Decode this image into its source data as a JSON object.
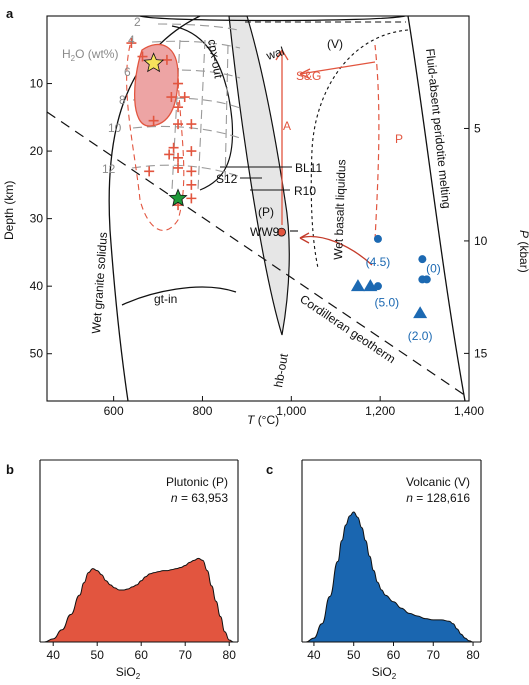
{
  "chart_data": [
    {
      "panel": "a",
      "type": "scatter",
      "xlabel_main": "T",
      "xlabel_unit": "(°C)",
      "ylabel": "Depth (km)",
      "y2label_main": "P",
      "y2label_unit": "(kbar)",
      "xlim": [
        450,
        1400
      ],
      "ylim": [
        0,
        57
      ],
      "x_ticks": [
        "600",
        "800",
        "1,000",
        "1,200",
        "1,400"
      ],
      "y_ticks": [
        "10",
        "20",
        "30",
        "40",
        "50"
      ],
      "y2_ticks": [
        "5",
        "10",
        "15"
      ],
      "water_contours": {
        "title": "H2O (wt%)",
        "title_base": "H",
        "title_sub": "2",
        "title_rest": "O (wt%)",
        "labels": [
          "2",
          "4",
          "6",
          "8",
          "10",
          "12"
        ]
      },
      "labels": {
        "cpx_out": "cpx-out",
        "wal": "wal",
        "V": "(V)",
        "SG": "S&G",
        "A": "A",
        "P_path": "P",
        "BL11": "BL11",
        "S12": "S12",
        "R10": "R10",
        "P_field": "(P)",
        "WW9": "WW9",
        "gt_in": "gt-in",
        "hb_out": "hb-out",
        "wet_granite": "Wet granite solidus",
        "wet_basalt": "Wet basalt liquidus",
        "fluid_absent": "Fluid-absent peridotite melting",
        "cordilleran": "Cordilleran geotherm"
      },
      "experiments_crosses": [
        {
          "t": 640,
          "d": 4
        },
        {
          "t": 665,
          "d": 6
        },
        {
          "t": 720,
          "d": 6.5
        },
        {
          "t": 745,
          "d": 10
        },
        {
          "t": 730,
          "d": 12
        },
        {
          "t": 760,
          "d": 12
        },
        {
          "t": 745,
          "d": 13.5
        },
        {
          "t": 690,
          "d": 15.5
        },
        {
          "t": 745,
          "d": 16
        },
        {
          "t": 775,
          "d": 16
        },
        {
          "t": 735,
          "d": 19.5
        },
        {
          "t": 725,
          "d": 20.5
        },
        {
          "t": 775,
          "d": 20
        },
        {
          "t": 745,
          "d": 21
        },
        {
          "t": 745,
          "d": 22.5
        },
        {
          "t": 680,
          "d": 23
        },
        {
          "t": 775,
          "d": 23
        },
        {
          "t": 775,
          "d": 25
        },
        {
          "t": 775,
          "d": 27
        },
        {
          "t": 745,
          "d": 28
        }
      ],
      "star_yellow": {
        "t": 690,
        "d": 7
      },
      "star_green": {
        "t": 745,
        "d": 27
      },
      "red_point_WW9": {
        "t": 978,
        "d": 32
      },
      "circles": [
        {
          "t": 1195,
          "d": 33
        },
        {
          "t": 1195,
          "d": 40
        },
        {
          "t": 1295,
          "d": 36
        },
        {
          "t": 1295,
          "d": 39
        },
        {
          "t": 1305,
          "d": 39
        }
      ],
      "triangles": [
        {
          "t": 1150,
          "d": 40
        },
        {
          "t": 1178,
          "d": 40
        },
        {
          "t": 1290,
          "d": 44
        }
      ],
      "blue_labels": [
        {
          "text": "(4.5)",
          "t": 1195,
          "d": 37
        },
        {
          "text": "(5.0)",
          "t": 1215,
          "d": 43
        },
        {
          "text": "(0)",
          "t": 1320,
          "d": 38
        },
        {
          "text": "(2.0)",
          "t": 1290,
          "d": 48
        }
      ]
    },
    {
      "panel": "b",
      "type": "area",
      "title": "Plutonic (P)",
      "n_label": "n",
      "n_value": "= 63,953",
      "xlabel_base": "SiO",
      "xlabel_sub": "2",
      "xlim": [
        37,
        82
      ],
      "x_ticks": [
        "40",
        "50",
        "60",
        "70",
        "80"
      ],
      "color": "#e2553f",
      "x": [
        38,
        40,
        42,
        44,
        46,
        47,
        48,
        49,
        50,
        51,
        52,
        53,
        54,
        55,
        56,
        57,
        58,
        59,
        60,
        61,
        62,
        63,
        64,
        65,
        66,
        67,
        68,
        69,
        70,
        71,
        72,
        73,
        74,
        75,
        76,
        77,
        78,
        79,
        80,
        81
      ],
      "y": [
        0,
        0.03,
        0.12,
        0.27,
        0.46,
        0.58,
        0.68,
        0.72,
        0.7,
        0.66,
        0.6,
        0.56,
        0.53,
        0.51,
        0.51,
        0.52,
        0.54,
        0.56,
        0.6,
        0.64,
        0.67,
        0.68,
        0.69,
        0.7,
        0.7,
        0.71,
        0.72,
        0.73,
        0.75,
        0.78,
        0.8,
        0.82,
        0.8,
        0.7,
        0.55,
        0.4,
        0.25,
        0.1,
        0.02,
        0
      ]
    },
    {
      "panel": "c",
      "type": "area",
      "title": "Volcanic (V)",
      "n_label": "n",
      "n_value": "= 128,616",
      "xlabel_base": "SiO",
      "xlabel_sub": "2",
      "xlim": [
        37,
        82
      ],
      "x_ticks": [
        "40",
        "50",
        "60",
        "70",
        "80"
      ],
      "color": "#1a66b0",
      "x": [
        38,
        40,
        42,
        44,
        46,
        47,
        48,
        49,
        50,
        51,
        52,
        53,
        54,
        55,
        56,
        57,
        58,
        60,
        62,
        64,
        66,
        68,
        70,
        72,
        74,
        75,
        76,
        77,
        78,
        79,
        80
      ],
      "y": [
        0,
        0.03,
        0.14,
        0.35,
        0.62,
        0.78,
        0.9,
        0.97,
        1.0,
        0.96,
        0.88,
        0.78,
        0.66,
        0.55,
        0.46,
        0.4,
        0.36,
        0.31,
        0.26,
        0.22,
        0.2,
        0.18,
        0.17,
        0.17,
        0.16,
        0.14,
        0.1,
        0.06,
        0.03,
        0.01,
        0
      ]
    }
  ]
}
